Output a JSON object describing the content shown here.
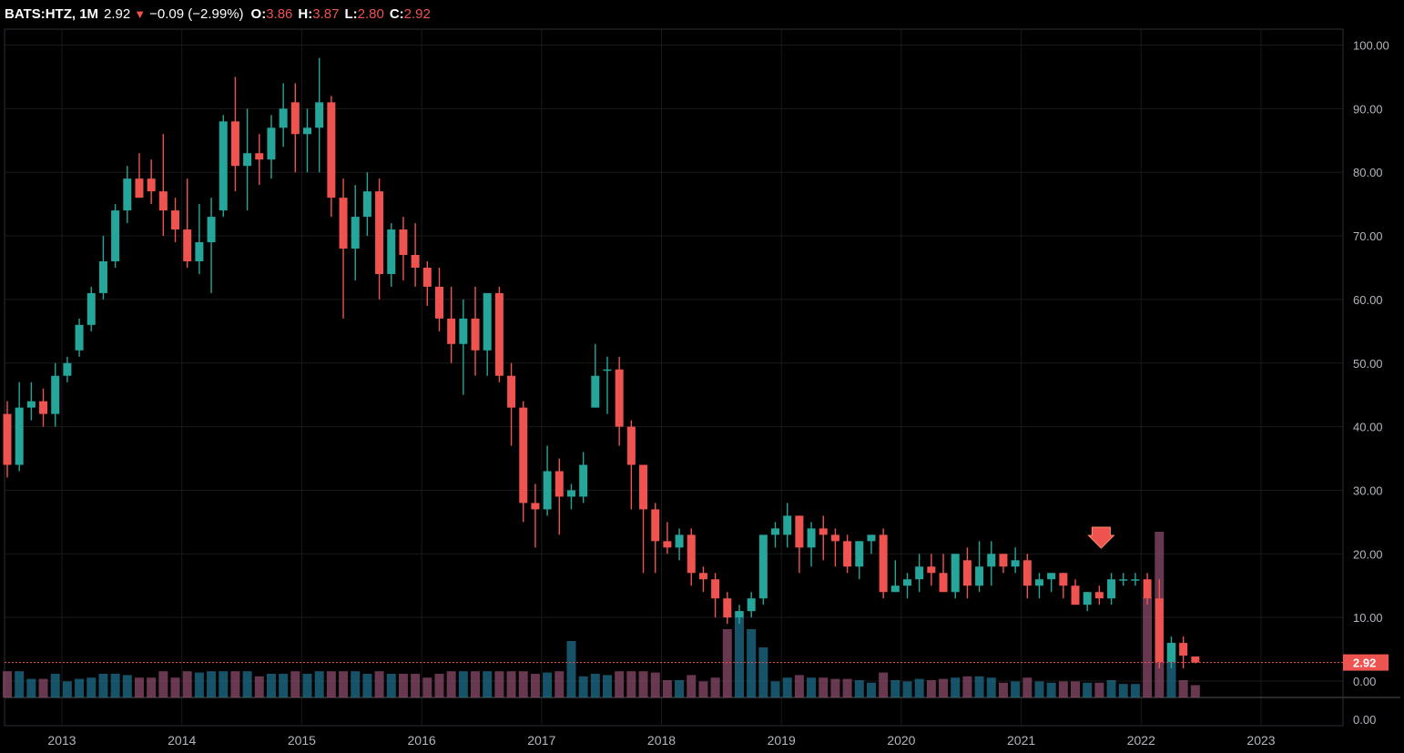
{
  "header": {
    "symbol": "BATS:HTZ, 1M",
    "last": "2.92",
    "change_arrow": "▼",
    "change": "−0.09 (−2.99%)",
    "o_label": "O:",
    "o_value": "3.86",
    "h_label": "H:",
    "h_value": "3.87",
    "l_label": "L:",
    "l_value": "2.80",
    "c_label": "C:",
    "c_value": "2.92"
  },
  "last_price_label": "2.92",
  "colors": {
    "up": "#26a69a",
    "down": "#ef5350",
    "grid": "#1a1a1a",
    "axis_text": "#b2b5be",
    "volume_up": "#1f6f8b",
    "volume_down": "#8b4a6b"
  },
  "chart_data": {
    "type": "candlestick",
    "symbol": "BATS:HTZ",
    "interval": "1M",
    "price_axis_ticks": [
      "100.00",
      "90.00",
      "80.00",
      "70.00",
      "60.00",
      "50.00",
      "40.00",
      "30.00",
      "20.00",
      "10.00",
      "0.00"
    ],
    "volume_axis_tick": "0.00",
    "year_ticks": [
      "2013",
      "2014",
      "2015",
      "2016",
      "2017",
      "2018",
      "2019",
      "2020",
      "2021",
      "2022",
      "2023"
    ],
    "ylim": [
      0,
      100
    ],
    "current_price": 2.92,
    "candles": [
      [
        42,
        44,
        32,
        34
      ],
      [
        34,
        47,
        33,
        43
      ],
      [
        43,
        47,
        41,
        44
      ],
      [
        44,
        46,
        40,
        42
      ],
      [
        42,
        50,
        40,
        48
      ],
      [
        48,
        51,
        47,
        50
      ],
      [
        52,
        57,
        51,
        56
      ],
      [
        56,
        62,
        55,
        61
      ],
      [
        61,
        70,
        60,
        66
      ],
      [
        66,
        75,
        65,
        74
      ],
      [
        74,
        81,
        72,
        79
      ],
      [
        79,
        83,
        76,
        76
      ],
      [
        79,
        82,
        75,
        77
      ],
      [
        77,
        86,
        70,
        74
      ],
      [
        74,
        76,
        69,
        71
      ],
      [
        71,
        79,
        65,
        66
      ],
      [
        66,
        75,
        64,
        69
      ],
      [
        69,
        76,
        61,
        73
      ],
      [
        74,
        89,
        73,
        88
      ],
      [
        88,
        95,
        77,
        81
      ],
      [
        81,
        90,
        74,
        83
      ],
      [
        83,
        86,
        78,
        82
      ],
      [
        82,
        89,
        79,
        87
      ],
      [
        87,
        94,
        84,
        90
      ],
      [
        91,
        94,
        80,
        86
      ],
      [
        86,
        90,
        80,
        87
      ],
      [
        87,
        98,
        80,
        91
      ],
      [
        91,
        92,
        73,
        76
      ],
      [
        76,
        79,
        57,
        68
      ],
      [
        68,
        78,
        63,
        73
      ],
      [
        73,
        80,
        70,
        77
      ],
      [
        77,
        79,
        60,
        64
      ],
      [
        64,
        72,
        62,
        71
      ],
      [
        71,
        73,
        63,
        67
      ],
      [
        67,
        72,
        62,
        65
      ],
      [
        65,
        66,
        59,
        62
      ],
      [
        62,
        65,
        55,
        57
      ],
      [
        57,
        62,
        50,
        53
      ],
      [
        53,
        60,
        45,
        57
      ],
      [
        57,
        62,
        48,
        52
      ],
      [
        52,
        61,
        48,
        61
      ],
      [
        61,
        62,
        47,
        48
      ],
      [
        48,
        50,
        37,
        43
      ],
      [
        43,
        44,
        25,
        28
      ],
      [
        28,
        31,
        21,
        27
      ],
      [
        27,
        37,
        26,
        33
      ],
      [
        33,
        35,
        23,
        29
      ],
      [
        29,
        31,
        27,
        30
      ],
      [
        29,
        36,
        28,
        34
      ],
      [
        43,
        53,
        43,
        48
      ],
      [
        49,
        51,
        42,
        49
      ],
      [
        49,
        51,
        37,
        40
      ],
      [
        40,
        41,
        27,
        34
      ],
      [
        34,
        34,
        17,
        27
      ],
      [
        27,
        28,
        17,
        22
      ],
      [
        22,
        25,
        20,
        21
      ],
      [
        21,
        24,
        19,
        23
      ],
      [
        23,
        24,
        15,
        17
      ],
      [
        17,
        18,
        14,
        16
      ],
      [
        16,
        17,
        10,
        13
      ],
      [
        13,
        14,
        9,
        10
      ],
      [
        10,
        12,
        9,
        11
      ],
      [
        11,
        14,
        10,
        13
      ],
      [
        13,
        22,
        12,
        23
      ],
      [
        23,
        25,
        21,
        24
      ],
      [
        23,
        28,
        21,
        26
      ],
      [
        26,
        26,
        17,
        21
      ],
      [
        21,
        25,
        18,
        24
      ],
      [
        24,
        26,
        19,
        23
      ],
      [
        23,
        24,
        18,
        22
      ],
      [
        22,
        23,
        17,
        18
      ],
      [
        18,
        21,
        16,
        22
      ],
      [
        22,
        23,
        20,
        23
      ],
      [
        23,
        24,
        13,
        14
      ],
      [
        14,
        19,
        14,
        15
      ],
      [
        15,
        17,
        13,
        16
      ],
      [
        16,
        20,
        14,
        18
      ],
      [
        18,
        20,
        15,
        17
      ],
      [
        17,
        20,
        14,
        14
      ],
      [
        14,
        20,
        13,
        20
      ],
      [
        19,
        21,
        13,
        15
      ],
      [
        15,
        22,
        14,
        18
      ],
      [
        18,
        22,
        15,
        20
      ],
      [
        20,
        20,
        17,
        18
      ],
      [
        18,
        21,
        17,
        19
      ],
      [
        19,
        20,
        13,
        15
      ],
      [
        15,
        17,
        13,
        16
      ],
      [
        16,
        17,
        14,
        17
      ],
      [
        17,
        17,
        13,
        15
      ],
      [
        15,
        16,
        12,
        12
      ],
      [
        12,
        14,
        11,
        14
      ],
      [
        14,
        15,
        12,
        13
      ],
      [
        13,
        17,
        12,
        16
      ],
      [
        16,
        17,
        15,
        16
      ],
      [
        16,
        17,
        15,
        16
      ],
      [
        16,
        17,
        12,
        13
      ],
      [
        13,
        16,
        2,
        3
      ],
      [
        3,
        7,
        2,
        6
      ],
      [
        6,
        7,
        2,
        4
      ],
      [
        3.86,
        3.87,
        2.8,
        2.92
      ]
    ]
  }
}
